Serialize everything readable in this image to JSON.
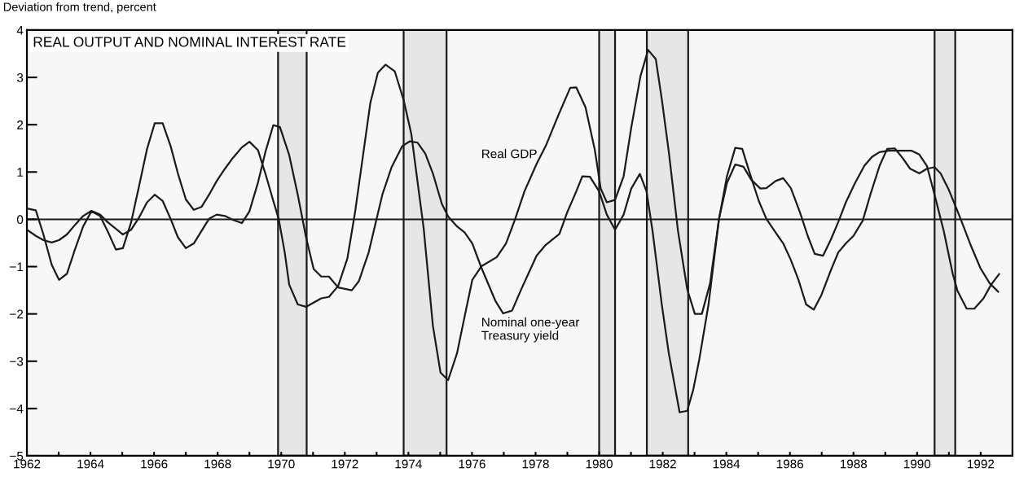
{
  "chart_data": {
    "type": "line",
    "title": "REAL OUTPUT AND NOMINAL INTEREST RATE",
    "ylabel": "Deviation from trend, percent",
    "xlim": [
      1962,
      1993
    ],
    "ylim": [
      -5,
      4
    ],
    "xticks": [
      1962,
      {
        "value": 1963,
        "label": null
      },
      1964,
      {
        "value": 1965,
        "label": null
      },
      1966,
      {
        "value": 1967,
        "label": null
      },
      1968,
      {
        "value": 1969,
        "label": null
      },
      1970,
      {
        "value": 1971,
        "label": null
      },
      1972,
      {
        "value": 1973,
        "label": null
      },
      1974,
      {
        "value": 1975,
        "label": null
      },
      1976,
      {
        "value": 1977,
        "label": null
      },
      1978,
      {
        "value": 1979,
        "label": null
      },
      1980,
      {
        "value": 1981,
        "label": null
      },
      1982,
      {
        "value": 1983,
        "label": null
      },
      1984,
      {
        "value": 1985,
        "label": null
      },
      1986,
      {
        "value": 1987,
        "label": null
      },
      1988,
      {
        "value": 1989,
        "label": null
      },
      1990,
      {
        "value": 1991,
        "label": null
      },
      1992
    ],
    "yticks": [
      -5,
      -4,
      -3,
      -2,
      -1,
      0,
      1,
      2,
      3,
      4
    ],
    "grid": false,
    "legend": false,
    "marker": "none",
    "line_style": "solid",
    "series": [
      {
        "name": "Real GDP",
        "color": "#1a1a1a",
        "x": [
          1962.0,
          1962.28,
          1962.52,
          1962.78,
          1963.01,
          1963.26,
          1963.51,
          1963.77,
          1964.03,
          1964.3,
          1964.54,
          1964.8,
          1965.02,
          1965.28,
          1965.53,
          1965.78,
          1966.02,
          1966.27,
          1966.52,
          1966.75,
          1967.0,
          1967.25,
          1967.49,
          1967.73,
          1967.97,
          1968.23,
          1968.47,
          1968.76,
          1969.0,
          1969.27,
          1969.5,
          1969.75,
          1969.92,
          1970.11,
          1970.25,
          1970.52,
          1970.78,
          1971.02,
          1971.26,
          1971.5,
          1971.79,
          1972.08,
          1972.32,
          1972.56,
          1972.8,
          1973.04,
          1973.28,
          1973.57,
          1973.85,
          1974.09,
          1974.29,
          1974.48,
          1974.77,
          1975.01,
          1975.25,
          1975.53,
          1975.77,
          1976.01,
          1976.3,
          1976.78,
          1977.07,
          1977.36,
          1977.65,
          1978.03,
          1978.32,
          1978.71,
          1979.09,
          1979.28,
          1979.57,
          1979.86,
          1980.05,
          1980.24,
          1980.5,
          1980.77,
          1981.01,
          1981.3,
          1981.54,
          1981.78,
          1981.97,
          1982.19,
          1982.48,
          1982.77,
          1983.01,
          1983.23,
          1983.49,
          1983.77,
          1984.02,
          1984.28,
          1984.5,
          1984.74,
          1985.02,
          1985.26,
          1985.55,
          1985.79,
          1986.03,
          1986.27,
          1986.51,
          1986.75,
          1986.99,
          1987.28,
          1987.52,
          1987.76,
          1988.0,
          1988.29,
          1988.53,
          1988.82,
          1989.06,
          1989.3,
          1989.54,
          1989.78,
          1990.07,
          1990.31,
          1990.55,
          1990.74,
          1990.98,
          1991.22,
          1991.46,
          1991.7,
          1991.99,
          1992.28,
          1992.55
        ],
        "values": [
          0.23,
          0.19,
          -0.32,
          -0.96,
          -1.28,
          -1.15,
          -0.64,
          -0.15,
          0.17,
          0.07,
          -0.25,
          -0.64,
          -0.61,
          -0.06,
          0.71,
          1.49,
          2.03,
          2.03,
          1.55,
          0.97,
          0.42,
          0.2,
          0.26,
          0.52,
          0.81,
          1.07,
          1.29,
          1.52,
          1.64,
          1.46,
          0.97,
          0.39,
          0.01,
          -0.7,
          -1.38,
          -1.8,
          -1.85,
          -1.76,
          -1.67,
          -1.64,
          -1.41,
          -0.83,
          0.14,
          1.29,
          2.45,
          3.1,
          3.27,
          3.13,
          2.52,
          1.81,
          0.78,
          -0.19,
          -2.25,
          -3.24,
          -3.4,
          -2.83,
          -2.05,
          -1.28,
          -0.99,
          -0.8,
          -0.51,
          0.01,
          0.59,
          1.17,
          1.55,
          2.19,
          2.78,
          2.79,
          2.37,
          1.48,
          0.65,
          0.36,
          0.41,
          0.91,
          1.94,
          3.03,
          3.58,
          3.39,
          2.54,
          1.43,
          -0.25,
          -1.48,
          -2.0,
          -2.0,
          -1.35,
          0.01,
          0.91,
          1.51,
          1.49,
          0.97,
          0.39,
          0.01,
          -0.28,
          -0.51,
          -0.86,
          -1.28,
          -1.8,
          -1.91,
          -1.6,
          -1.09,
          -0.7,
          -0.51,
          -0.35,
          -0.03,
          0.52,
          1.13,
          1.49,
          1.5,
          1.3,
          1.07,
          0.97,
          1.07,
          1.1,
          0.97,
          0.65,
          0.26,
          -0.15,
          -0.57,
          -1.03,
          -1.35,
          -1.53
        ]
      },
      {
        "name": "Nominal one-year\nTreasury yield",
        "color": "#1a1a1a",
        "x": [
          1962.0,
          1962.28,
          1962.52,
          1962.78,
          1963.01,
          1963.26,
          1963.51,
          1963.77,
          1964.03,
          1964.3,
          1964.54,
          1964.8,
          1965.02,
          1965.28,
          1965.53,
          1965.78,
          1966.02,
          1966.27,
          1966.52,
          1966.75,
          1967.0,
          1967.25,
          1967.49,
          1967.73,
          1967.97,
          1968.23,
          1968.47,
          1968.76,
          1969.0,
          1969.27,
          1969.5,
          1969.75,
          1969.96,
          1970.25,
          1970.52,
          1970.78,
          1971.02,
          1971.26,
          1971.5,
          1971.79,
          1972.22,
          1972.44,
          1972.75,
          1973.18,
          1973.47,
          1973.81,
          1974.05,
          1974.29,
          1974.53,
          1974.77,
          1975.05,
          1975.25,
          1975.53,
          1975.77,
          1976.01,
          1976.3,
          1976.74,
          1976.98,
          1977.26,
          1977.55,
          1978.03,
          1978.32,
          1978.75,
          1978.99,
          1979.28,
          1979.47,
          1979.71,
          1980.0,
          1980.24,
          1980.5,
          1980.77,
          1981.01,
          1981.28,
          1981.49,
          1981.68,
          1981.97,
          1982.19,
          1982.53,
          1982.77,
          1982.96,
          1983.15,
          1983.44,
          1983.77,
          1984.02,
          1984.28,
          1984.54,
          1984.78,
          1985.07,
          1985.26,
          1985.55,
          1985.79,
          1986.03,
          1986.32,
          1986.56,
          1986.78,
          1987.04,
          1987.28,
          1987.52,
          1987.76,
          1988.05,
          1988.34,
          1988.58,
          1988.82,
          1989.11,
          1989.49,
          1989.83,
          1990.07,
          1990.31,
          1990.55,
          1990.84,
          1991.12,
          1991.27,
          1991.56,
          1991.8,
          1992.09,
          1992.33,
          1992.58
        ],
        "values": [
          -0.22,
          -0.35,
          -0.44,
          -0.49,
          -0.44,
          -0.32,
          -0.12,
          0.07,
          0.18,
          0.1,
          -0.06,
          -0.2,
          -0.32,
          -0.22,
          0.04,
          0.36,
          0.52,
          0.39,
          0.01,
          -0.38,
          -0.61,
          -0.51,
          -0.25,
          0.01,
          0.1,
          0.07,
          -0.01,
          -0.08,
          0.17,
          0.78,
          1.42,
          1.99,
          1.95,
          1.36,
          0.52,
          -0.38,
          -1.05,
          -1.21,
          -1.21,
          -1.44,
          -1.5,
          -1.31,
          -0.7,
          0.52,
          1.1,
          1.55,
          1.65,
          1.62,
          1.39,
          0.97,
          0.33,
          0.06,
          -0.15,
          -0.28,
          -0.51,
          -1.03,
          -1.73,
          -1.99,
          -1.93,
          -1.48,
          -0.77,
          -0.54,
          -0.31,
          0.14,
          0.59,
          0.91,
          0.9,
          0.59,
          0.1,
          -0.22,
          0.1,
          0.65,
          0.96,
          0.59,
          -0.25,
          -1.8,
          -2.83,
          -4.08,
          -4.05,
          -3.6,
          -2.96,
          -1.8,
          0.01,
          0.77,
          1.16,
          1.11,
          0.84,
          0.65,
          0.66,
          0.81,
          0.87,
          0.66,
          0.14,
          -0.35,
          -0.73,
          -0.77,
          -0.44,
          -0.06,
          0.36,
          0.77,
          1.13,
          1.32,
          1.42,
          1.45,
          1.45,
          1.45,
          1.37,
          1.13,
          0.52,
          -0.25,
          -1.15,
          -1.51,
          -1.89,
          -1.89,
          -1.67,
          -1.38,
          -1.16
        ]
      }
    ],
    "ref_lines": [
      {
        "axis": "y",
        "value": 0,
        "color": "#1a1a1a",
        "line_style": "solid"
      }
    ],
    "bands": [
      {
        "axis": "x",
        "from": 1969.9,
        "to": 1970.8,
        "color": "#e6e6e6"
      },
      {
        "axis": "x",
        "from": 1973.85,
        "to": 1975.2,
        "color": "#e6e6e6"
      },
      {
        "axis": "x",
        "from": 1980.0,
        "to": 1980.5,
        "color": "#e6e6e6"
      },
      {
        "axis": "x",
        "from": 1981.5,
        "to": 1982.8,
        "color": "#e6e6e6"
      },
      {
        "axis": "x",
        "from": 1990.55,
        "to": 1991.2,
        "color": "#e6e6e6"
      }
    ]
  }
}
